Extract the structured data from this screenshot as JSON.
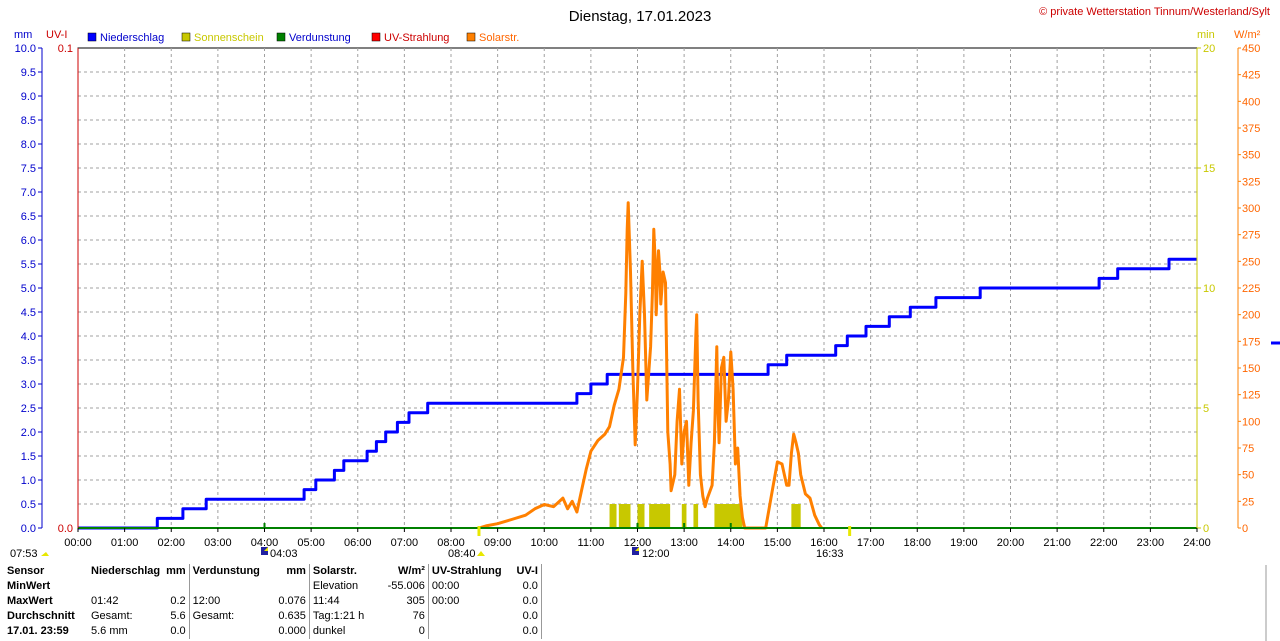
{
  "header": {
    "title": "Dienstag, 17.01.2023",
    "copyright": "© private Wetterstation Tinnum/Westerland/Sylt"
  },
  "axes": {
    "left_unit_mm": "mm",
    "left_unit_uv": "UV-I",
    "right_unit_min": "min",
    "right_unit_wm2": "W/m²",
    "mm_ticks": [
      "0.0",
      "0.5",
      "1.0",
      "1.5",
      "2.0",
      "2.5",
      "3.0",
      "3.5",
      "4.0",
      "4.5",
      "5.0",
      "5.5",
      "6.0",
      "6.5",
      "7.0",
      "7.5",
      "8.0",
      "8.5",
      "9.0",
      "9.5",
      "10.0"
    ],
    "uv_ticks": [
      "0.0",
      "0.1"
    ],
    "min_ticks": [
      "0",
      "5",
      "10",
      "15",
      "20"
    ],
    "wm2_ticks": [
      "0",
      "25",
      "50",
      "75",
      "100",
      "125",
      "150",
      "175",
      "200",
      "225",
      "250",
      "275",
      "300",
      "325",
      "350",
      "375",
      "400",
      "425",
      "450"
    ],
    "time_ticks": [
      "00:00",
      "01:00",
      "02:00",
      "03:00",
      "04:00",
      "05:00",
      "06:00",
      "07:00",
      "08:00",
      "09:00",
      "10:00",
      "11:00",
      "12:00",
      "13:00",
      "14:00",
      "15:00",
      "16:00",
      "17:00",
      "18:00",
      "19:00",
      "20:00",
      "21:00",
      "22:00",
      "23:00",
      "24:00"
    ]
  },
  "legend": [
    {
      "label": "Niederschlag",
      "color": "#0000ff",
      "text_color": "#0000cc"
    },
    {
      "label": "Sonnenschein",
      "color": "#c8c800",
      "text_color": "#c8c800"
    },
    {
      "label": "Verdunstung",
      "color": "#008000",
      "text_color": "#0000cc"
    },
    {
      "label": "UV-Strahlung",
      "color": "#ff0000",
      "text_color": "#cc0000"
    },
    {
      "label": "Solarstr.",
      "color": "#ff8000",
      "text_color": "#ff6600"
    }
  ],
  "markers": {
    "sunrise": "07:53",
    "sunset": "16:33",
    "m1": "04:03",
    "m2": "08:40",
    "m3": "12:00"
  },
  "stats": {
    "headers": {
      "sensor": "Sensor",
      "niederschlag": "Niederschlag",
      "unit_mm": "mm",
      "verdunstung": "Verdunstung",
      "unit_mm2": "mm",
      "solar": "Solarstr.",
      "unit_wm2": "W/m²",
      "uv": "UV-Strahlung",
      "unit_uv": "UV-I"
    },
    "rows": [
      {
        "label": "MinWert",
        "n_time": "",
        "n_val": "",
        "v_time": "",
        "v_val": "",
        "s_time": "Elevation",
        "s_val": "-55.006",
        "u_time": "00:00",
        "u_val": "0.0"
      },
      {
        "label": "MaxWert",
        "n_time": "01:42",
        "n_val": "0.2",
        "v_time": "12:00",
        "v_val": "0.076",
        "s_time": "11:44",
        "s_val": "305",
        "u_time": "00:00",
        "u_val": "0.0"
      },
      {
        "label": "Durchschnitt",
        "n_time": "Gesamt:",
        "n_val": "5.6",
        "v_time": "Gesamt:",
        "v_val": "0.635",
        "s_time": "Tag:1:21 h",
        "s_val": "76",
        "u_time": "",
        "u_val": "0.0"
      },
      {
        "label": "17.01. 23:59",
        "n_time": "5.6 mm",
        "n_val": "0.0",
        "v_time": "",
        "v_val": "0.000",
        "s_time": "dunkel",
        "s_val": "0",
        "u_time": "",
        "u_val": "0.0"
      }
    ]
  },
  "chart_data": {
    "type": "line",
    "title": "Dienstag, 17.01.2023",
    "x_unit": "hours",
    "xlim": [
      0,
      24
    ],
    "grid": true,
    "legend_position": "top-left",
    "series": [
      {
        "name": "Niederschlag",
        "axis": "mm",
        "ylim": [
          0,
          10
        ],
        "step": true,
        "points": [
          [
            0,
            0
          ],
          [
            1.7,
            0
          ],
          [
            1.7,
            0.2
          ],
          [
            2.25,
            0.2
          ],
          [
            2.25,
            0.4
          ],
          [
            2.75,
            0.4
          ],
          [
            2.75,
            0.6
          ],
          [
            4.85,
            0.6
          ],
          [
            4.85,
            0.8
          ],
          [
            5.1,
            0.8
          ],
          [
            5.1,
            1.0
          ],
          [
            5.5,
            1.0
          ],
          [
            5.5,
            1.2
          ],
          [
            5.7,
            1.2
          ],
          [
            5.7,
            1.4
          ],
          [
            6.2,
            1.4
          ],
          [
            6.2,
            1.6
          ],
          [
            6.4,
            1.6
          ],
          [
            6.4,
            1.8
          ],
          [
            6.6,
            1.8
          ],
          [
            6.6,
            2.0
          ],
          [
            6.85,
            2.0
          ],
          [
            6.85,
            2.2
          ],
          [
            7.1,
            2.2
          ],
          [
            7.1,
            2.4
          ],
          [
            7.5,
            2.4
          ],
          [
            7.5,
            2.6
          ],
          [
            10.7,
            2.6
          ],
          [
            10.7,
            2.8
          ],
          [
            11.0,
            2.8
          ],
          [
            11.0,
            3.0
          ],
          [
            11.35,
            3.0
          ],
          [
            11.35,
            3.2
          ],
          [
            14.8,
            3.2
          ],
          [
            14.8,
            3.4
          ],
          [
            15.2,
            3.4
          ],
          [
            15.2,
            3.6
          ],
          [
            16.25,
            3.6
          ],
          [
            16.25,
            3.8
          ],
          [
            16.5,
            3.8
          ],
          [
            16.5,
            4.0
          ],
          [
            16.9,
            4.0
          ],
          [
            16.9,
            4.2
          ],
          [
            17.4,
            4.2
          ],
          [
            17.4,
            4.4
          ],
          [
            17.85,
            4.4
          ],
          [
            17.85,
            4.6
          ],
          [
            18.4,
            4.6
          ],
          [
            18.4,
            4.8
          ],
          [
            19.35,
            4.8
          ],
          [
            19.35,
            5.0
          ],
          [
            21.9,
            5.0
          ],
          [
            21.9,
            5.2
          ],
          [
            22.3,
            5.2
          ],
          [
            22.3,
            5.4
          ],
          [
            23.4,
            5.4
          ],
          [
            23.4,
            5.6
          ],
          [
            24,
            5.6
          ]
        ]
      },
      {
        "name": "Solarstr.",
        "axis": "W/m²",
        "ylim": [
          0,
          450
        ],
        "points": [
          [
            8.6,
            0
          ],
          [
            8.75,
            2
          ],
          [
            9.0,
            4
          ],
          [
            9.3,
            8
          ],
          [
            9.6,
            12
          ],
          [
            9.8,
            18
          ],
          [
            10.0,
            22
          ],
          [
            10.2,
            20
          ],
          [
            10.4,
            28
          ],
          [
            10.5,
            18
          ],
          [
            10.6,
            25
          ],
          [
            10.7,
            15
          ],
          [
            10.8,
            35
          ],
          [
            10.9,
            55
          ],
          [
            11.0,
            72
          ],
          [
            11.15,
            82
          ],
          [
            11.3,
            88
          ],
          [
            11.4,
            95
          ],
          [
            11.5,
            115
          ],
          [
            11.6,
            130
          ],
          [
            11.7,
            160
          ],
          [
            11.75,
            220
          ],
          [
            11.78,
            280
          ],
          [
            11.8,
            305
          ],
          [
            11.85,
            240
          ],
          [
            11.9,
            150
          ],
          [
            11.95,
            78
          ],
          [
            12.0,
            130
          ],
          [
            12.05,
            200
          ],
          [
            12.1,
            250
          ],
          [
            12.15,
            200
          ],
          [
            12.2,
            120
          ],
          [
            12.28,
            170
          ],
          [
            12.32,
            220
          ],
          [
            12.35,
            280
          ],
          [
            12.38,
            250
          ],
          [
            12.4,
            200
          ],
          [
            12.45,
            260
          ],
          [
            12.48,
            240
          ],
          [
            12.5,
            210
          ],
          [
            12.55,
            240
          ],
          [
            12.6,
            230
          ],
          [
            12.65,
            90
          ],
          [
            12.7,
            60
          ],
          [
            12.72,
            35
          ],
          [
            12.8,
            50
          ],
          [
            12.85,
            100
          ],
          [
            12.9,
            130
          ],
          [
            12.95,
            60
          ],
          [
            13.0,
            90
          ],
          [
            13.05,
            100
          ],
          [
            13.1,
            40
          ],
          [
            13.15,
            80
          ],
          [
            13.2,
            110
          ],
          [
            13.25,
            180
          ],
          [
            13.27,
            200
          ],
          [
            13.3,
            120
          ],
          [
            13.35,
            50
          ],
          [
            13.4,
            30
          ],
          [
            13.45,
            20
          ],
          [
            13.5,
            28
          ],
          [
            13.6,
            40
          ],
          [
            13.65,
            80
          ],
          [
            13.7,
            170
          ],
          [
            13.72,
            120
          ],
          [
            13.75,
            80
          ],
          [
            13.8,
            150
          ],
          [
            13.85,
            160
          ],
          [
            13.9,
            100
          ],
          [
            13.95,
            120
          ],
          [
            14.0,
            165
          ],
          [
            14.05,
            130
          ],
          [
            14.1,
            60
          ],
          [
            14.15,
            75
          ],
          [
            14.2,
            30
          ],
          [
            14.25,
            10
          ],
          [
            14.3,
            0
          ],
          [
            14.75,
            0
          ],
          [
            14.85,
            25
          ],
          [
            15.0,
            62
          ],
          [
            15.1,
            60
          ],
          [
            15.2,
            40
          ],
          [
            15.25,
            40
          ],
          [
            15.3,
            70
          ],
          [
            15.35,
            88
          ],
          [
            15.4,
            80
          ],
          [
            15.45,
            70
          ],
          [
            15.5,
            50
          ],
          [
            15.6,
            32
          ],
          [
            15.7,
            28
          ],
          [
            15.8,
            12
          ],
          [
            15.9,
            3
          ],
          [
            15.95,
            0
          ]
        ]
      },
      {
        "name": "Sonnenschein",
        "axis": "min",
        "ylim": [
          0,
          20
        ],
        "bars": [
          [
            11.4,
            11.55,
            1
          ],
          [
            11.6,
            11.85,
            1
          ],
          [
            12.0,
            12.15,
            1
          ],
          [
            12.25,
            12.7,
            1
          ],
          [
            12.95,
            13.05,
            1
          ],
          [
            13.2,
            13.3,
            1
          ],
          [
            13.65,
            14.25,
            1
          ],
          [
            15.3,
            15.5,
            1
          ]
        ]
      },
      {
        "name": "Verdunstung",
        "axis": "mm",
        "ylim": [
          0,
          10
        ],
        "points": [
          [
            0,
            0
          ],
          [
            24,
            0
          ]
        ]
      }
    ]
  }
}
